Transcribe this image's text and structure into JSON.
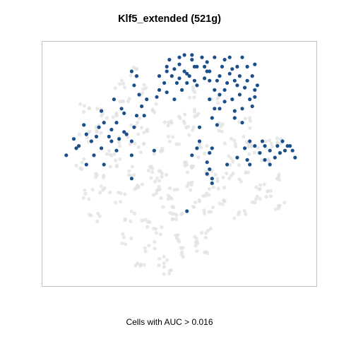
{
  "chart_data": {
    "type": "scatter",
    "title": "Klf5_extended (521g)",
    "xlabel": "Cells with AUC > 0.016",
    "ylabel": "",
    "axes_visible": false,
    "grid": false,
    "legend": "none",
    "xlim": [
      0,
      100
    ],
    "ylim": [
      0,
      100
    ],
    "colors": {
      "background_cells": "#e0e0e0",
      "high_auc_cells": "#1a4f8a"
    },
    "series": [
      {
        "values": [],
        "points": [
          [
            13,
            74
          ],
          [
            18,
            73
          ],
          [
            23,
            70
          ],
          [
            28,
            78
          ],
          [
            33,
            68
          ],
          [
            40,
            74
          ],
          [
            45,
            68
          ],
          [
            22,
            55
          ],
          [
            28,
            60
          ],
          [
            34,
            57
          ],
          [
            42,
            57
          ],
          [
            48,
            60
          ],
          [
            55,
            64
          ],
          [
            60,
            57
          ],
          [
            12,
            62
          ],
          [
            18,
            45
          ],
          [
            24,
            50
          ],
          [
            30,
            47
          ],
          [
            38,
            49
          ],
          [
            44,
            46
          ],
          [
            51,
            49
          ],
          [
            57,
            51
          ],
          [
            62,
            46
          ],
          [
            14,
            37
          ],
          [
            20,
            40
          ],
          [
            27,
            36
          ],
          [
            33,
            40
          ],
          [
            40,
            37
          ],
          [
            47,
            38
          ],
          [
            53,
            41
          ],
          [
            60,
            38
          ],
          [
            66,
            42
          ],
          [
            30,
            28
          ],
          [
            36,
            25
          ],
          [
            42,
            22
          ],
          [
            48,
            19
          ],
          [
            55,
            17
          ],
          [
            59,
            14
          ],
          [
            38,
            15
          ],
          [
            44,
            9
          ],
          [
            50,
            12
          ],
          [
            46,
            5
          ],
          [
            72,
            52
          ],
          [
            76,
            60
          ],
          [
            80,
            56
          ],
          [
            84,
            50
          ],
          [
            88,
            45
          ],
          [
            76,
            45
          ],
          [
            82,
            40
          ],
          [
            80,
            35
          ],
          [
            86,
            38
          ],
          [
            90,
            33
          ],
          [
            58,
            72
          ],
          [
            66,
            66
          ],
          [
            70,
            60
          ],
          [
            64,
            78
          ],
          [
            55,
            81
          ],
          [
            35,
            82
          ],
          [
            26,
            84
          ],
          [
            62,
            30
          ],
          [
            68,
            34
          ],
          [
            74,
            28
          ],
          [
            50,
            30
          ],
          [
            45,
            34
          ],
          [
            16,
            28
          ],
          [
            10,
            50
          ],
          [
            86,
            58
          ],
          [
            69,
            46
          ],
          [
            52,
            70
          ],
          [
            31,
            90
          ],
          [
            19,
            66
          ],
          [
            57,
            33
          ],
          [
            47,
            27
          ],
          [
            40,
            42
          ],
          [
            36,
            64
          ],
          [
            76,
            68
          ],
          [
            91,
            60
          ],
          [
            61,
            21
          ],
          [
            29,
            18
          ],
          [
            35,
            8
          ]
        ],
        "spread": 2.4
      },
      {
        "name": "Cells with AUC > 0.016",
        "points": [
          [
            45,
            92
          ],
          [
            50,
            93
          ],
          [
            47,
            88
          ],
          [
            53,
            89
          ],
          [
            49,
            85
          ],
          [
            44,
            85
          ],
          [
            55,
            95
          ],
          [
            50,
            96
          ],
          [
            46,
            95
          ],
          [
            45,
            81
          ],
          [
            51,
            82
          ],
          [
            56,
            92
          ],
          [
            48,
            78
          ],
          [
            53,
            85
          ],
          [
            52,
            90
          ],
          [
            59,
            96
          ],
          [
            64,
            96
          ],
          [
            68,
            95
          ],
          [
            61,
            90
          ],
          [
            71,
            91
          ],
          [
            75,
            96
          ],
          [
            77,
            92
          ],
          [
            65,
            86
          ],
          [
            69,
            85
          ],
          [
            73,
            84
          ],
          [
            77,
            86
          ],
          [
            66,
            80
          ],
          [
            71,
            78
          ],
          [
            74,
            80
          ],
          [
            79,
            88
          ],
          [
            80,
            82
          ],
          [
            80,
            79
          ],
          [
            62,
            90
          ],
          [
            67,
            92
          ],
          [
            73,
            92
          ],
          [
            60,
            92
          ],
          [
            81,
            84
          ],
          [
            78,
            78
          ],
          [
            72,
            73
          ],
          [
            75,
            74
          ],
          [
            66,
            74
          ],
          [
            63,
            70
          ],
          [
            68,
            77
          ],
          [
            5,
            54
          ],
          [
            8,
            61
          ],
          [
            9,
            57
          ],
          [
            13,
            63
          ],
          [
            17,
            62
          ],
          [
            18,
            66
          ],
          [
            22,
            62
          ],
          [
            20,
            68
          ],
          [
            25,
            68
          ],
          [
            28,
            64
          ],
          [
            28,
            72
          ],
          [
            32,
            66
          ],
          [
            31,
            60
          ],
          [
            33,
            71
          ],
          [
            37,
            78
          ],
          [
            25,
            56
          ],
          [
            13,
            50
          ],
          [
            16,
            54
          ],
          [
            20,
            50
          ],
          [
            23,
            60
          ],
          [
            31,
            54
          ],
          [
            36,
            71
          ],
          [
            35,
            75
          ],
          [
            34,
            80
          ],
          [
            32,
            84
          ],
          [
            31,
            90
          ],
          [
            27,
            74
          ],
          [
            19,
            73
          ],
          [
            24,
            78
          ],
          [
            12,
            67
          ],
          [
            80,
            58
          ],
          [
            83,
            60
          ],
          [
            86,
            56
          ],
          [
            88,
            53
          ],
          [
            90,
            55
          ],
          [
            84,
            52
          ],
          [
            93,
            58
          ],
          [
            95,
            56
          ],
          [
            96,
            53
          ],
          [
            91,
            60
          ],
          [
            94,
            58
          ],
          [
            86,
            50
          ],
          [
            82,
            55
          ],
          [
            76,
            57
          ],
          [
            78,
            50
          ],
          [
            69,
            50
          ],
          [
            73,
            53
          ],
          [
            77,
            52
          ],
          [
            61,
            51
          ],
          [
            62,
            55
          ],
          [
            63,
            57
          ],
          [
            61,
            46
          ],
          [
            62,
            48
          ],
          [
            63,
            44
          ],
          [
            55,
            54
          ],
          [
            57,
            57
          ],
          [
            58,
            60
          ],
          [
            40,
            56
          ],
          [
            31,
            44
          ],
          [
            53,
            30
          ],
          [
            63,
            42
          ],
          [
            65,
            67
          ],
          [
            64,
            74
          ],
          [
            75,
            68
          ],
          [
            62,
            78
          ],
          [
            58,
            66
          ],
          [
            78,
            60
          ],
          [
            54,
            88
          ],
          [
            57,
            84
          ],
          [
            60,
            87
          ],
          [
            64,
            82
          ],
          [
            52,
            97
          ],
          [
            70,
            89
          ],
          [
            41,
            79
          ],
          [
            42,
            82
          ],
          [
            33,
            88
          ],
          [
            74,
            88
          ],
          [
            66,
            88
          ],
          [
            57,
            92
          ],
          [
            61,
            94
          ],
          [
            45,
            90
          ],
          [
            48,
            91
          ],
          [
            70,
            96
          ],
          [
            68,
            82
          ],
          [
            80,
            93
          ],
          [
            55,
            97
          ],
          [
            42,
            88
          ],
          [
            56,
            86
          ],
          [
            50,
            87
          ],
          [
            62,
            86
          ],
          [
            72,
            86
          ],
          [
            76,
            83
          ],
          [
            79,
            75
          ],
          [
            72,
            70
          ],
          [
            84,
            58
          ],
          [
            89,
            58
          ],
          [
            92,
            56
          ],
          [
            15,
            60
          ],
          [
            23,
            65
          ],
          [
            29,
            63
          ],
          [
            26,
            61
          ],
          [
            10,
            58
          ],
          [
            19,
            57
          ]
        ]
      }
    ]
  },
  "caption_text": "Cells with AUC > 0.016"
}
